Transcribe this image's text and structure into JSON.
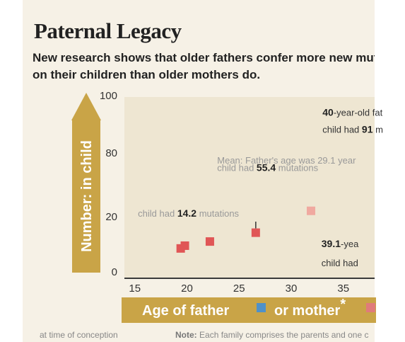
{
  "title": "Paternal Legacy",
  "subtitle": "New research shows that older fathers confer more new mutations on their children than older mothers do.",
  "footnote_left": "at time of conception",
  "footnote_right_label": "Note:",
  "footnote_right_text": "Each family comprises the parents and one c",
  "colors": {
    "panel": "#f6f1e6",
    "plot": "#eee6d2",
    "gold": "#c9a447",
    "father": "#4f91c9",
    "mother": "#e07b7b",
    "point": "#e05656"
  },
  "chart_data": {
    "type": "scatter",
    "title": "Paternal Legacy",
    "subtitle": "New research shows that older fathers confer more new mutations on their children than older mothers do.",
    "xlabel_parts": [
      "Age of father",
      "or mother"
    ],
    "xlabel_superscript": "*",
    "ylabel": "Number: in child",
    "x_ticks": [
      15,
      20,
      25,
      30,
      35
    ],
    "y_ticks": [
      0,
      20,
      80,
      100
    ],
    "xlim": [
      14,
      38
    ],
    "grid": false,
    "legend": "bottom",
    "series": [
      {
        "name": "mother",
        "points": [
          {
            "x": 19.4,
            "y": 8.5
          },
          {
            "x": 19.8,
            "y": 9.5
          },
          {
            "x": 22.2,
            "y": 11.0
          },
          {
            "x": 26.6,
            "y": 14.2
          },
          {
            "x": 31.9,
            "y": 25.5
          }
        ]
      }
    ],
    "annotations": [
      {
        "parts": [
          "40",
          "-year-old fat"
        ],
        "bold": [
          true,
          false
        ],
        "x": 33,
        "y": 93
      },
      {
        "parts": [
          "child had ",
          "91",
          " m"
        ],
        "bold": [
          false,
          true,
          false
        ],
        "x": 33,
        "y": 87
      },
      {
        "parts": [
          "Mean: Father's age was 29.1 year"
        ],
        "bold": [
          false
        ],
        "x": 22.9,
        "y": 70
      },
      {
        "parts": [
          "child had ",
          "55.4",
          " mutations"
        ],
        "bold": [
          false,
          true,
          false
        ],
        "x": 22.9,
        "y": 63
      },
      {
        "parts": [
          "child had ",
          "14.2",
          " mutations"
        ],
        "bold": [
          false,
          true,
          false
        ],
        "x": 15.3,
        "y": 20
      },
      {
        "parts": [
          "39.1",
          "-yea"
        ],
        "bold": [
          true,
          false
        ],
        "x": 32.9,
        "y": 9
      },
      {
        "parts": [
          "child had"
        ],
        "bold": [
          false
        ],
        "x": 32.9,
        "y": 2
      }
    ]
  }
}
